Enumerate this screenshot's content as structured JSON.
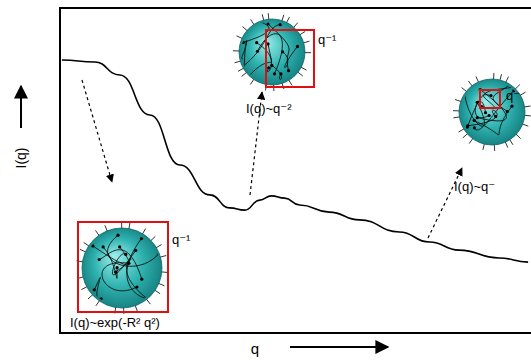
{
  "chart_data": {
    "type": "line",
    "x_label": "q",
    "y_label": "I(q)",
    "x": [
      0.4,
      7.4,
      12.7,
      19.1,
      25.5,
      31.9,
      36.1,
      39.3,
      42.5,
      45.0,
      47.8,
      51.0,
      57.3,
      63.7,
      72.2,
      78.6,
      84.9,
      93.4,
      99.6
    ],
    "values": [
      84.0,
      83.4,
      79.4,
      67.1,
      51.7,
      42.5,
      38.5,
      37.8,
      40.9,
      42.2,
      41.5,
      39.4,
      37.2,
      34.8,
      31.1,
      28.0,
      25.5,
      23.1,
      21.8
    ],
    "xlim": [
      0,
      100
    ],
    "ylim": [
      0,
      100
    ],
    "color": "#000000",
    "tick_labels": false,
    "grid": false,
    "annotations": [
      "I(q)~exp(-R² q²)",
      "q⁻¹",
      "I(q)~q⁻²",
      "q⁻¹",
      "I(q)~q⁻",
      "q⁻"
    ]
  }
}
